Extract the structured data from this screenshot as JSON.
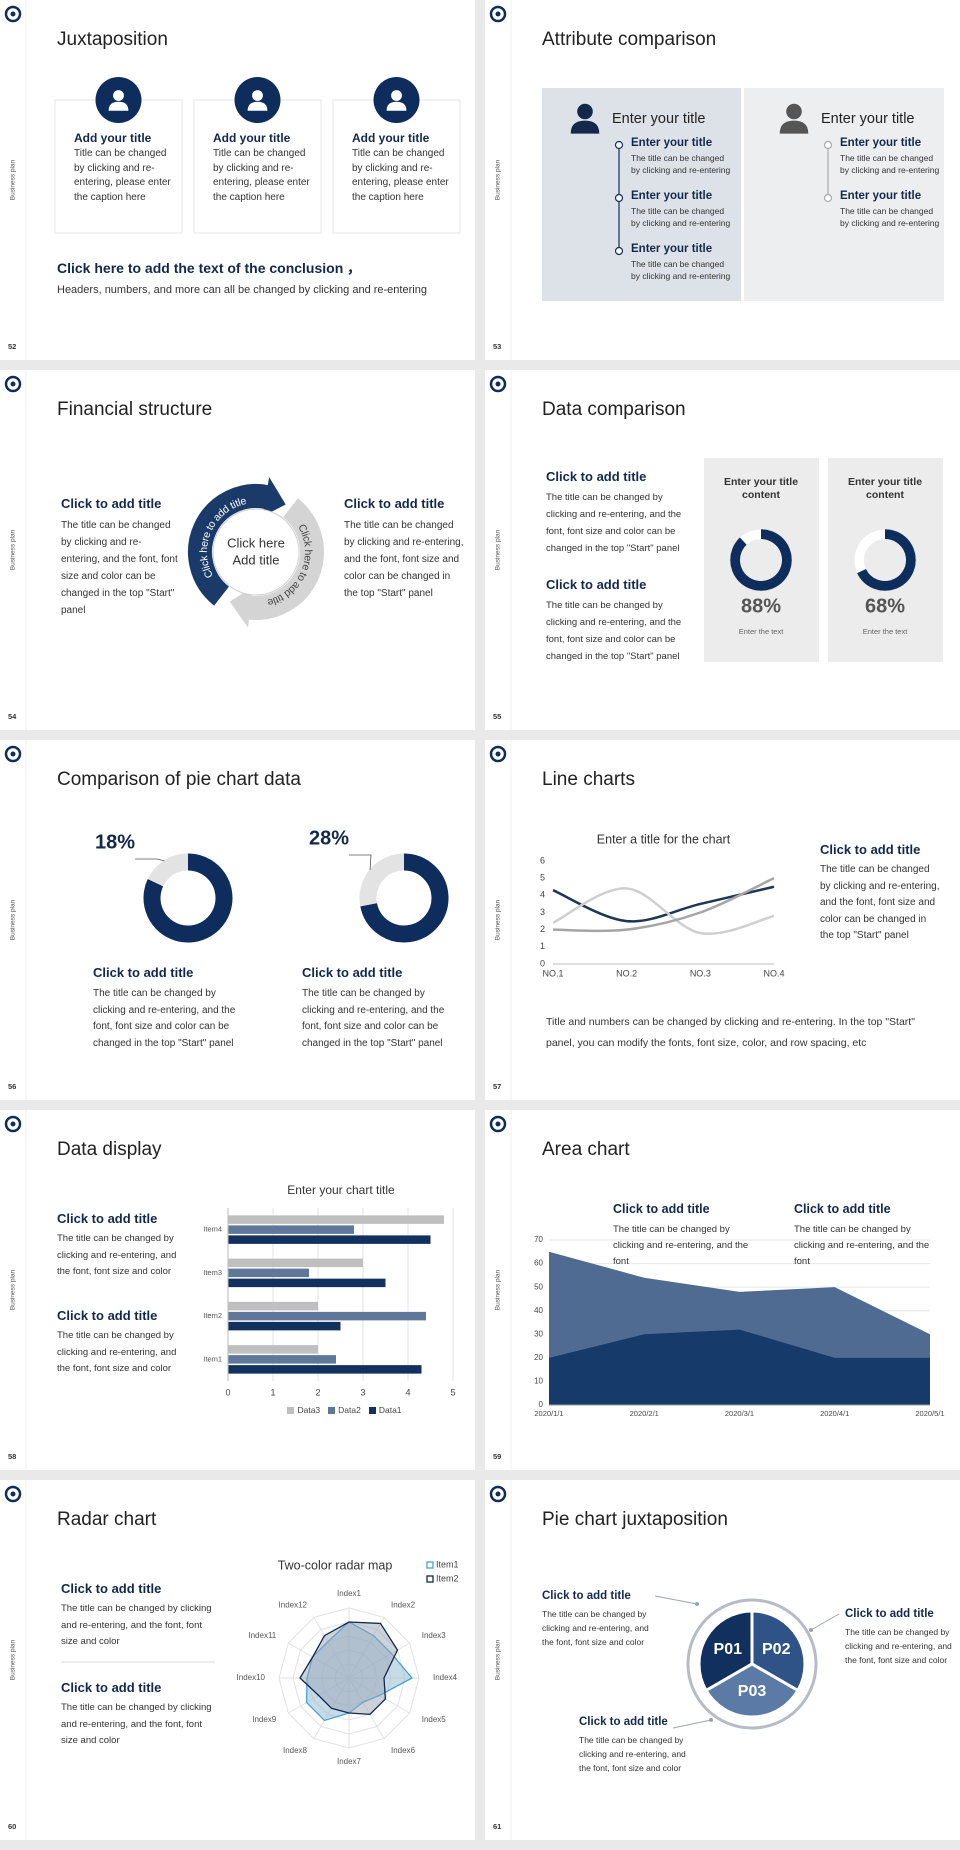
{
  "side_label": "Business plan",
  "slides": [
    {
      "page": "52",
      "title": "Juxtaposition",
      "cards": [
        {
          "heading": "Add your title",
          "text": "Title can be changed by clicking and re-entering, please enter the caption here"
        },
        {
          "heading": "Add your title",
          "text": "Title can be changed by clicking and re-entering, please enter the caption here"
        },
        {
          "heading": "Add your title",
          "text": "Title can be changed by clicking and re-entering, please enter the caption here"
        }
      ],
      "conclusion": {
        "heading": "Click here to add the text of the conclusion ，",
        "text": "Headers, numbers, and more can all be changed by clicking and re-entering"
      }
    },
    {
      "page": "53",
      "title": "Attribute comparison",
      "panels": [
        {
          "heading": "Enter your title",
          "items": [
            {
              "heading": "Enter your title",
              "text": "The title can be changed by clicking and re-entering"
            },
            {
              "heading": "Enter your title",
              "text": "The title can be changed by clicking and re-entering"
            },
            {
              "heading": "Enter your title",
              "text": "The title can be changed by clicking and re-entering"
            }
          ]
        },
        {
          "heading": "Enter your title",
          "items": [
            {
              "heading": "Enter your title",
              "text": "The title can be changed by clicking and re-entering"
            },
            {
              "heading": "Enter your title",
              "text": "The title can be changed by clicking and re-entering"
            }
          ]
        }
      ]
    },
    {
      "page": "54",
      "title": "Financial structure",
      "blocks": [
        {
          "heading": "Click to add title",
          "text": "The title can be changed by clicking and re-entering, and the font, font size and color can be changed in the top \"Start\" panel"
        },
        {
          "heading": "Click to add title",
          "text": "The title can be changed by clicking and re-entering, and the font, font size and color can be changed in the top \"Start\" panel"
        }
      ],
      "center": [
        "Click here",
        "Add title"
      ],
      "arcs": [
        "Click here to add title",
        "Click here to add title"
      ]
    },
    {
      "page": "55",
      "title": "Data comparison",
      "blocks": [
        {
          "heading": "Click to add title",
          "text": "The title can be changed by clicking and re-entering, and the font, font size and color can be changed in the top \"Start\" panel"
        },
        {
          "heading": "Click to add title",
          "text": "The title can be changed by clicking and re-entering, and the font, font size and color can be changed in the top \"Start\" panel"
        }
      ],
      "charts": [
        {
          "type": "donut",
          "title": "Enter your title content",
          "value": 88,
          "value_label": "88%",
          "caption": "Enter the text",
          "color": "#0f2d5c",
          "track_color": "#ffffff"
        },
        {
          "type": "donut",
          "title": "Enter your title content",
          "value": 68,
          "value_label": "68%",
          "caption": "Enter the text",
          "color": "#0f2d5c",
          "track_color": "#ffffff"
        }
      ]
    },
    {
      "page": "56",
      "title": "Comparison of pie chart data",
      "charts": [
        {
          "type": "donut",
          "value": 18,
          "value_label": "18%",
          "color": "#e3e3e3",
          "track_color": "#0f2d5c"
        },
        {
          "type": "donut",
          "value": 28,
          "value_label": "28%",
          "color": "#e3e3e3",
          "track_color": "#0f2d5c"
        }
      ],
      "blocks": [
        {
          "heading": "Click to add title",
          "text": "The title can be changed by clicking and re-entering, and the font, font size and color can be changed in the top \"Start\" panel"
        },
        {
          "heading": "Click to add title",
          "text": "The title can be changed by clicking and re-entering, and the font, font size and color can be changed in the top \"Start\" panel"
        }
      ]
    },
    {
      "page": "57",
      "title": "Line charts",
      "chart": {
        "type": "line",
        "title": "Enter a title for the chart",
        "categories": [
          "NO.1",
          "NO.2",
          "NO.3",
          "NO.4"
        ],
        "series": [
          {
            "color": "#1f3556",
            "values": [
              4.3,
              2.5,
              3.5,
              4.5
            ]
          },
          {
            "color": "#cfcfcf",
            "values": [
              2.4,
              4.4,
              1.8,
              2.8
            ]
          },
          {
            "color": "#a5a5a5",
            "values": [
              2,
              2,
              3,
              5
            ]
          }
        ],
        "ylim": [
          0,
          6
        ],
        "yticks": [
          0,
          1,
          2,
          3,
          4,
          5,
          6
        ],
        "grid": false,
        "smooth": true
      },
      "block": {
        "heading": "Click to add title",
        "text": "The title can be changed by clicking and re-entering, and the font, font size and color can be changed in the top \"Start\" panel"
      },
      "note": "Title and numbers can be changed by clicking and re-entering. In the top \"Start\" panel, you can modify the fonts, font size, color, and row spacing, etc"
    },
    {
      "page": "58",
      "title": "Data display",
      "blocks": [
        {
          "heading": "Click to add title",
          "text": "The title can be changed by clicking and re-entering, and the font, font size and color"
        },
        {
          "heading": "Click to add title",
          "text": "The title can be changed by clicking and re-entering, and the font, font size and color"
        }
      ],
      "chart": {
        "type": "hbar",
        "title": "Enter your chart title",
        "categories": [
          "Item1",
          "Item2",
          "Item3",
          "Item4"
        ],
        "series": [
          {
            "name": "Data3",
            "color": "#bfbfbf",
            "values": [
              2,
              2,
              3,
              4.8
            ]
          },
          {
            "name": "Data2",
            "color": "#5f7799",
            "values": [
              2.4,
              4.4,
              1.8,
              2.8
            ]
          },
          {
            "name": "Data1",
            "color": "#13315f",
            "values": [
              4.3,
              2.5,
              3.5,
              4.5
            ]
          }
        ],
        "xlim": [
          0,
          5
        ],
        "xticks": [
          0,
          1,
          2,
          3,
          4,
          5
        ],
        "grid": true,
        "legend": "bottom"
      }
    },
    {
      "page": "59",
      "title": "Area chart",
      "blocks": [
        {
          "heading": "Click to add title",
          "text": "The title can be changed by clicking and re-entering, and the font"
        },
        {
          "heading": "Click to add title",
          "text": "The title can be changed by clicking and re-entering, and the font"
        }
      ],
      "chart": {
        "type": "area",
        "categories": [
          "2020/1/1",
          "2020/2/1",
          "2020/3/1",
          "2020/4/1",
          "2020/5/1"
        ],
        "series": [
          {
            "color": "#4f6b91",
            "values": [
              65,
              54,
              48,
              50,
              30
            ]
          },
          {
            "color": "#163a69",
            "values": [
              20,
              30,
              32,
              20,
              20
            ]
          }
        ],
        "ylim": [
          0,
          70
        ],
        "yticks": [
          0,
          10,
          20,
          30,
          40,
          50,
          60,
          70
        ],
        "grid": true
      }
    },
    {
      "page": "60",
      "title": "Radar chart",
      "blocks": [
        {
          "heading": "Click to add title",
          "text": "The title can be changed by clicking and re-entering, and the font, font size and color"
        },
        {
          "heading": "Click to add title",
          "text": "The title can be changed by clicking and re-entering, and the font, font size and color"
        }
      ],
      "chart": {
        "type": "radar",
        "title": "Two-color radar map",
        "categories": [
          "Index1",
          "Index2",
          "Index3",
          "Index4",
          "Index5",
          "Index6",
          "Index7",
          "Index8",
          "Index9",
          "Index10",
          "Index11",
          "Index12"
        ],
        "series": [
          {
            "name": "Item1",
            "color": "#46a3d3",
            "values": [
              4,
              3.5,
              3.5,
              4.5,
              2.5,
              2,
              2.5,
              3.5,
              3.5,
              3,
              3,
              3
            ]
          },
          {
            "name": "Item2",
            "color": "#13284b",
            "values": [
              4,
              4.5,
              4,
              2.5,
              3,
              3,
              2.5,
              2.5,
              2.5,
              3.5,
              3,
              3.5
            ]
          }
        ],
        "rlim": [
          0,
          5
        ],
        "grid": true,
        "legend": "upper right"
      }
    },
    {
      "page": "61",
      "title": "Pie chart juxtaposition",
      "segments": [
        "P01",
        "P02",
        "P03"
      ],
      "blocks": [
        {
          "heading": "Click to add title",
          "text": "The title can be changed by clicking and re-entering, and the font, font size and color"
        },
        {
          "heading": "Click to add title",
          "text": "The title can be changed by clicking and re-entering, and the font, font size and color"
        },
        {
          "heading": "Click to add title",
          "text": "The title can be changed by clicking and re-entering, and the font, font size and color"
        }
      ]
    }
  ]
}
